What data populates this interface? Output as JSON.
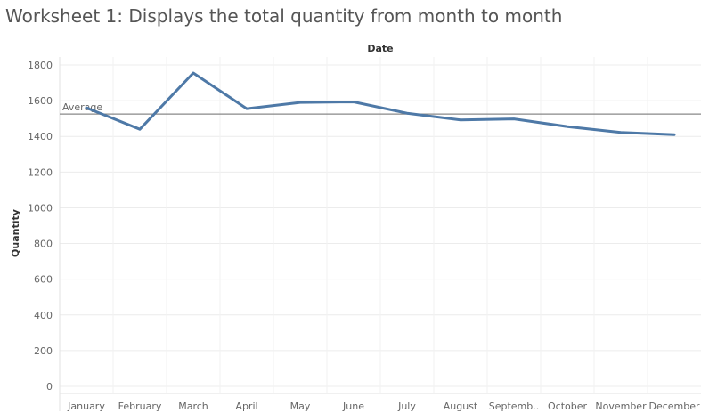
{
  "title": "Worksheet 1: Displays the total quantity from month to month",
  "chart_data": {
    "type": "line",
    "xlabel": "Date",
    "ylabel": "Quantity",
    "categories": [
      "January",
      "February",
      "March",
      "April",
      "May",
      "June",
      "July",
      "August",
      "September",
      "October",
      "November",
      "December"
    ],
    "category_labels": [
      "January",
      "February",
      "March",
      "April",
      "May",
      "June",
      "July",
      "August",
      "Septemb..",
      "October",
      "November",
      "December"
    ],
    "series": [
      {
        "values": [
          1560,
          1440,
          1755,
          1555,
          1590,
          1593,
          1530,
          1492,
          1498,
          1455,
          1422,
          1410
        ],
        "color": "#4e79a7"
      }
    ],
    "ylim": [
      0,
      1800
    ],
    "yticks": [
      0,
      200,
      400,
      600,
      800,
      1000,
      1200,
      1400,
      1600,
      1800
    ],
    "reference_line": {
      "label": "Average",
      "value": 1525,
      "color": "#888888"
    },
    "grid": true,
    "xaxis_position": "top-title"
  }
}
